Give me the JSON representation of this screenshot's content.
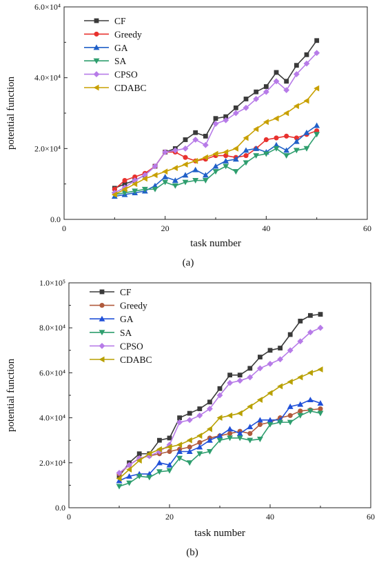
{
  "chart_data": [
    {
      "panel_label": "(a)",
      "type": "line",
      "xlabel": "task number",
      "ylabel": "potential function",
      "xlim": [
        0,
        60
      ],
      "ylim": [
        0,
        60000
      ],
      "xticks": [
        0,
        20,
        40,
        60
      ],
      "xtick_labels": [
        "0",
        "20",
        "40",
        "60"
      ],
      "yticks": [
        0,
        20000,
        40000,
        60000
      ],
      "ytick_labels": [
        "0.0",
        "2.0×10⁴",
        "4.0×10⁴",
        "6.0×10⁴"
      ],
      "legend_position": "top-left",
      "grid": false,
      "x": [
        10,
        12,
        14,
        16,
        18,
        20,
        22,
        24,
        26,
        28,
        30,
        32,
        34,
        36,
        38,
        40,
        42,
        44,
        46,
        48,
        50
      ],
      "series": [
        {
          "name": "CF",
          "color": "#3a3a3a",
          "marker": "square",
          "values": [
            8800,
            10000,
            11000,
            12500,
            15000,
            19000,
            20000,
            22500,
            24500,
            23500,
            28500,
            29000,
            31500,
            34000,
            36000,
            37500,
            41500,
            39000,
            43500,
            46500,
            50500
          ]
        },
        {
          "name": "Greedy",
          "color": "#e8312e",
          "marker": "circle",
          "values": [
            8500,
            11000,
            12000,
            13000,
            15000,
            19000,
            19000,
            17500,
            16500,
            17000,
            18000,
            18000,
            17500,
            18000,
            20000,
            22500,
            23000,
            23500,
            23000,
            24000,
            25000
          ]
        },
        {
          "name": "GA",
          "color": "#2060c8",
          "marker": "triangle-up",
          "values": [
            6500,
            7000,
            7500,
            8000,
            9500,
            12000,
            11000,
            12500,
            14000,
            12500,
            15000,
            16500,
            17000,
            19500,
            20000,
            19000,
            21000,
            19500,
            22000,
            24500,
            26500
          ]
        },
        {
          "name": "SA",
          "color": "#2e9e6e",
          "marker": "triangle-down",
          "values": [
            7000,
            7500,
            8000,
            8500,
            8500,
            10500,
            9500,
            10500,
            11000,
            11000,
            13500,
            15000,
            13500,
            16000,
            18000,
            18500,
            20000,
            18000,
            19500,
            20000,
            24000
          ]
        },
        {
          "name": "CPSO",
          "color": "#b77be8",
          "marker": "diamond",
          "values": [
            7500,
            9000,
            11000,
            12500,
            15000,
            19000,
            19500,
            20000,
            22500,
            21000,
            27000,
            28000,
            30000,
            31500,
            34000,
            36000,
            39000,
            36500,
            41000,
            44000,
            47000
          ]
        },
        {
          "name": "CDABC",
          "color": "#c8a000",
          "marker": "triangle-left",
          "values": [
            7000,
            8500,
            10000,
            11500,
            12500,
            13500,
            14500,
            15500,
            16500,
            17500,
            18500,
            19000,
            20000,
            23000,
            25500,
            27500,
            28500,
            30000,
            32000,
            33500,
            37000
          ]
        }
      ]
    },
    {
      "panel_label": "(b)",
      "type": "line",
      "xlabel": "task number",
      "ylabel": "potential function",
      "xlim": [
        0,
        60
      ],
      "ylim": [
        0,
        100000
      ],
      "xticks": [
        0,
        20,
        40,
        60
      ],
      "xtick_labels": [
        "0",
        "20",
        "40",
        "60"
      ],
      "yticks": [
        0,
        20000,
        40000,
        60000,
        80000,
        100000
      ],
      "ytick_labels": [
        "0.0",
        "2.0×10⁴",
        "4.0×10⁴",
        "6.0×10⁴",
        "8.0×10⁴",
        "1.0×10⁵"
      ],
      "legend_position": "top-left",
      "grid": false,
      "x": [
        10,
        12,
        14,
        16,
        18,
        20,
        22,
        24,
        26,
        28,
        30,
        32,
        34,
        36,
        38,
        40,
        42,
        44,
        46,
        48,
        50
      ],
      "series": [
        {
          "name": "CF",
          "color": "#3a3a3a",
          "marker": "square",
          "values": [
            14000,
            20000,
            24000,
            24000,
            30000,
            31000,
            40000,
            42000,
            44000,
            47000,
            53000,
            59000,
            59000,
            62000,
            67000,
            70000,
            71000,
            77000,
            83000,
            85500,
            86000
          ]
        },
        {
          "name": "Greedy",
          "color": "#b05a3c",
          "marker": "circle",
          "values": [
            15000,
            19000,
            22000,
            23000,
            24000,
            25000,
            26000,
            27000,
            29000,
            31000,
            32000,
            33000,
            34000,
            33000,
            37000,
            38000,
            40000,
            41000,
            43000,
            43500,
            44000
          ]
        },
        {
          "name": "GA",
          "color": "#2050d8",
          "marker": "triangle-up",
          "values": [
            12000,
            14000,
            15000,
            15000,
            20000,
            19000,
            25000,
            25000,
            27000,
            30000,
            32000,
            35000,
            33000,
            36000,
            39000,
            39000,
            39000,
            45000,
            46000,
            48000,
            46500
          ]
        },
        {
          "name": "SA",
          "color": "#2e9e6e",
          "marker": "triangle-down",
          "values": [
            9500,
            11000,
            14000,
            13500,
            16000,
            16500,
            22000,
            20000,
            24000,
            25000,
            30000,
            31000,
            31000,
            30000,
            30500,
            37000,
            38000,
            38000,
            41000,
            43000,
            42000
          ]
        },
        {
          "name": "CPSO",
          "color": "#b77be8",
          "marker": "diamond",
          "values": [
            15500,
            19000,
            22000,
            23000,
            25000,
            28000,
            38000,
            39000,
            41000,
            44000,
            50000,
            55500,
            56500,
            58000,
            62000,
            64000,
            66000,
            70000,
            74000,
            78000,
            80000
          ]
        },
        {
          "name": "CDABC",
          "color": "#b8a000",
          "marker": "triangle-left",
          "values": [
            13000,
            17000,
            21000,
            24000,
            26000,
            27000,
            28000,
            30000,
            32000,
            35000,
            40000,
            41000,
            42000,
            45000,
            48000,
            51000,
            54000,
            56000,
            58000,
            60000,
            61500
          ]
        }
      ]
    }
  ]
}
